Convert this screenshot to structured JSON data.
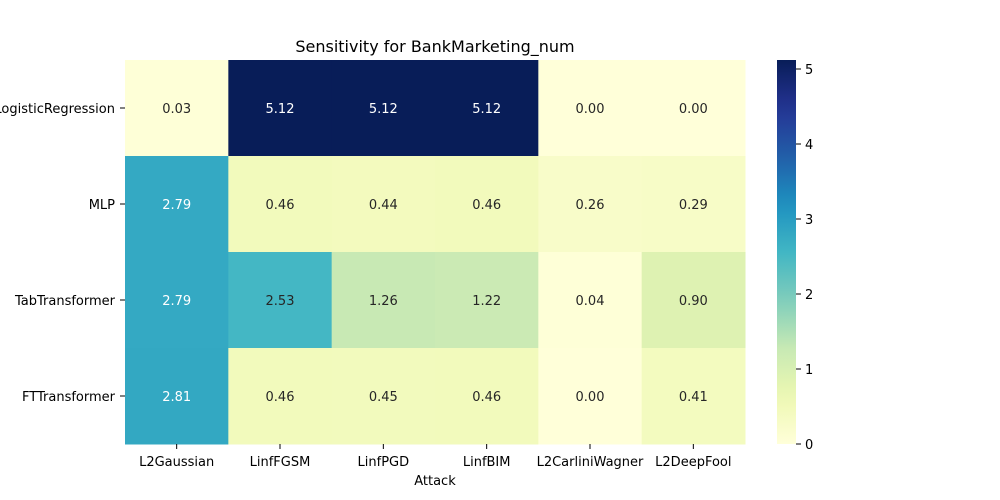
{
  "chart_data": {
    "type": "heatmap",
    "title": "Sensitivity for BankMarketing_num",
    "xlabel": "Attack",
    "ylabel": "",
    "x_categories": [
      "L2Gaussian",
      "LinfFGSM",
      "LinfPGD",
      "LinfBIM",
      "L2CarliniWagner",
      "L2DeepFool"
    ],
    "y_categories": [
      "LogisticRegression",
      "MLP",
      "TabTransformer",
      "FTTransformer"
    ],
    "values": [
      [
        0.03,
        5.12,
        5.12,
        5.12,
        0.0,
        0.0
      ],
      [
        2.79,
        0.46,
        0.44,
        0.46,
        0.26,
        0.29
      ],
      [
        2.79,
        2.53,
        1.26,
        1.22,
        0.04,
        0.9
      ],
      [
        2.81,
        0.46,
        0.45,
        0.46,
        0.0,
        0.41
      ]
    ],
    "value_format": "2 decimals",
    "colormap": "YlGnBu",
    "colorbar": {
      "min": 0,
      "max": 5.12,
      "ticks": [
        0,
        1,
        2,
        3,
        4,
        5
      ]
    }
  }
}
